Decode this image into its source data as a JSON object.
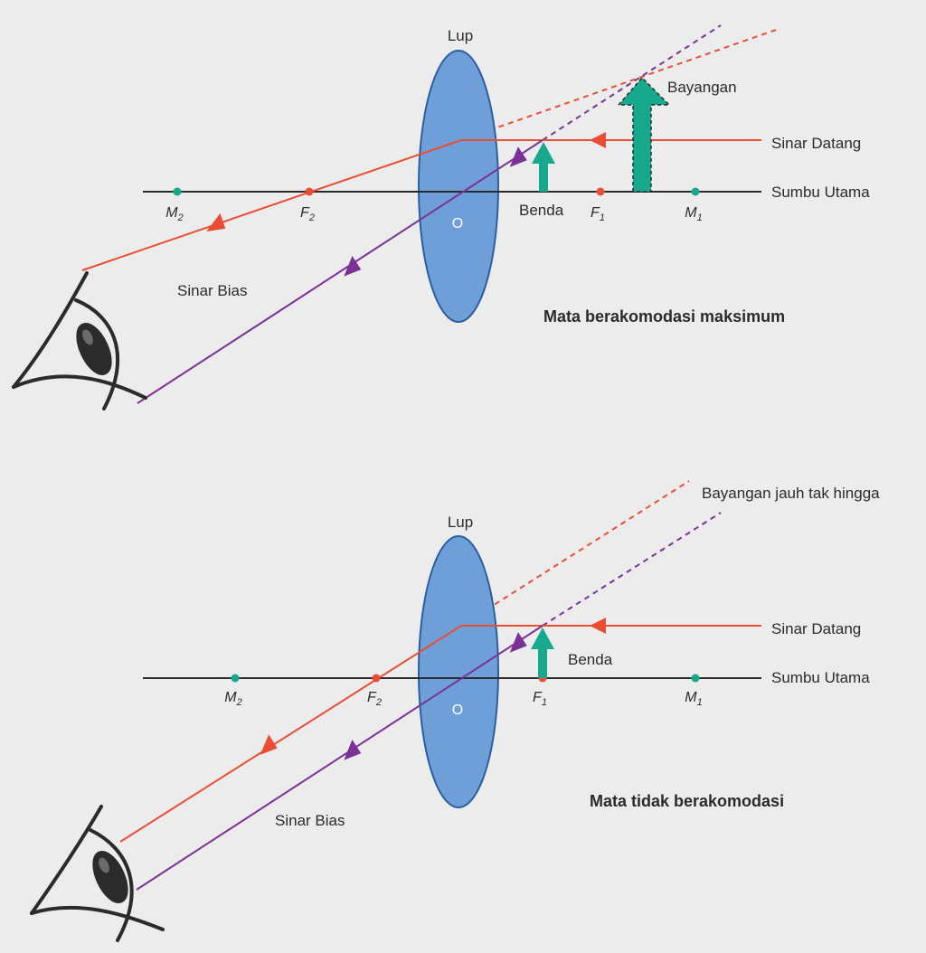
{
  "colors": {
    "background": "#ececec",
    "lens_fill": "#6f9fd8",
    "lens_stroke": "#2d5f9e",
    "red_ray": "#e94e35",
    "purple_ray": "#7b3296",
    "teal_point": "#16a98d",
    "red_point": "#e94e35",
    "axis": "#2b2b2b",
    "eye": "#2b2b2b"
  },
  "icons": [
    "eye-icon",
    "object-arrow",
    "image-arrow"
  ],
  "top": {
    "lens_label": "Lup",
    "center_label": "O",
    "points": [
      {
        "base": "M",
        "sub": "2"
      },
      {
        "base": "F",
        "sub": "2"
      },
      {
        "base": "F",
        "sub": "1"
      },
      {
        "base": "M",
        "sub": "1"
      }
    ],
    "object_label": "Benda",
    "image_label": "Bayangan",
    "incoming_ray_label": "Sinar Datang",
    "principal_axis_label": "Sumbu Utama",
    "refracted_ray_label": "Sinar Bias",
    "caption": "Mata berakomodasi maksimum"
  },
  "bottom": {
    "lens_label": "Lup",
    "center_label": "O",
    "points": [
      {
        "base": "M",
        "sub": "2"
      },
      {
        "base": "F",
        "sub": "2"
      },
      {
        "base": "F",
        "sub": "1"
      },
      {
        "base": "M",
        "sub": "1"
      }
    ],
    "object_label": "Benda",
    "image_label": "Bayangan jauh tak hingga",
    "incoming_ray_label": "Sinar Datang",
    "principal_axis_label": "Sumbu Utama",
    "refracted_ray_label": "Sinar Bias",
    "caption": "Mata tidak berakomodasi"
  }
}
